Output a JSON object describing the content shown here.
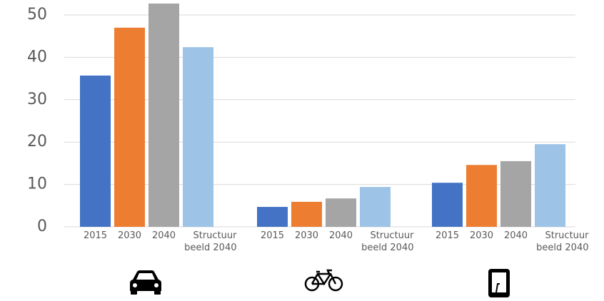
{
  "chart_data": {
    "type": "bar",
    "categories": [
      null,
      null,
      null
    ],
    "series": [
      {
        "name": "2015",
        "color": "#4472c4",
        "values": [
          35.7,
          4.7,
          10.4
        ]
      },
      {
        "name": "2030",
        "color": "#ed7d31",
        "values": [
          47,
          5.9,
          14.6
        ]
      },
      {
        "name": "2040",
        "color": "#a5a5a5",
        "values": [
          52.7,
          6.7,
          15.5
        ]
      },
      {
        "name": "Structuur beeld 2040",
        "color": "#9dc3e6",
        "values": [
          42.4,
          9.4,
          19.5
        ]
      }
    ],
    "ylim": [
      0,
      53.5
    ],
    "yticks": [
      0,
      10,
      20,
      30,
      40,
      50
    ],
    "grid": true
  }
}
